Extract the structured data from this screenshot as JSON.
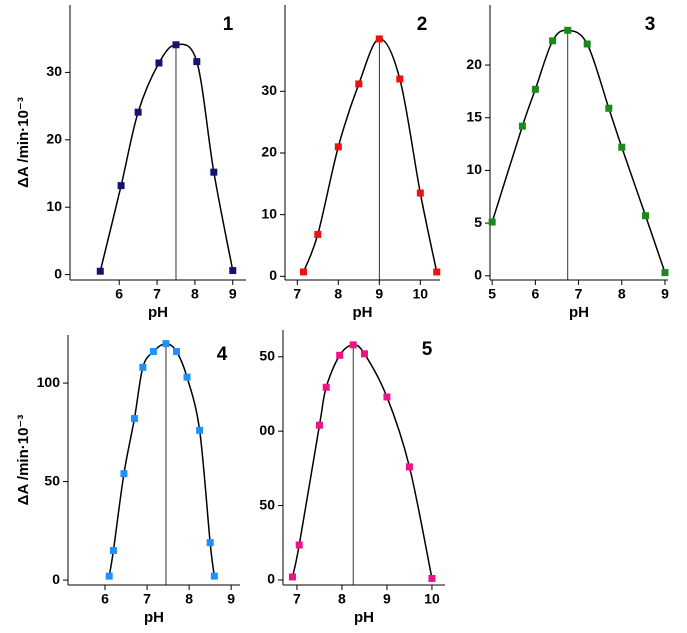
{
  "chart_data": [
    {
      "type": "line",
      "title": "1",
      "x_label": "pH",
      "y_label": "ΔA /min·10⁻³",
      "color": "#141470",
      "x": [
        5.5,
        6.05,
        6.5,
        7.05,
        7.5,
        8.05,
        8.5,
        9.0
      ],
      "values": [
        0.5,
        13.2,
        24.1,
        31.4,
        34.1,
        31.6,
        15.2,
        0.6
      ],
      "vline": 7.5,
      "xlim": [
        4.7,
        9.35
      ],
      "ylim": [
        -0.8,
        40
      ],
      "xticks": [
        6,
        7,
        8,
        9
      ],
      "yticks": [
        0,
        10,
        20,
        30
      ]
    },
    {
      "type": "line",
      "title": "2",
      "x_label": "pH",
      "color": "#ee1111",
      "x": [
        7.15,
        7.5,
        8.0,
        8.5,
        9.0,
        9.5,
        10.0,
        10.4
      ],
      "values": [
        0.7,
        6.8,
        21,
        31.2,
        38.5,
        32,
        13.5,
        0.7
      ],
      "vline": 9,
      "xlim": [
        6.7,
        10.48
      ],
      "ylim": [
        -0.6,
        44
      ],
      "xticks": [
        7,
        8,
        9,
        10
      ],
      "yticks": [
        0,
        10,
        20,
        30
      ]
    },
    {
      "type": "line",
      "title": "3",
      "x_label": "pH",
      "color": "#1a8a1a",
      "x": [
        5.0,
        5.7,
        6.0,
        6.4,
        6.75,
        7.2,
        7.7,
        8.0,
        8.55,
        9.0
      ],
      "values": [
        5.1,
        14.2,
        17.7,
        22.3,
        23.3,
        22,
        15.9,
        12.2,
        5.7,
        0.3
      ],
      "vline": 6.75,
      "xlim": [
        4.95,
        9.07
      ],
      "ylim": [
        -0.4,
        25.7
      ],
      "xticks": [
        5,
        6,
        7,
        8,
        9
      ],
      "yticks": [
        0,
        5,
        10,
        15,
        20
      ]
    },
    {
      "type": "line",
      "title": "4",
      "x_label": "pH",
      "y_label": "ΔA /min·10⁻³",
      "color": "#1e90ff",
      "x": [
        6.1,
        6.2,
        6.45,
        6.7,
        6.9,
        7.15,
        7.45,
        7.7,
        7.95,
        8.25,
        8.5,
        8.6
      ],
      "values": [
        2,
        15,
        54,
        82,
        108,
        116,
        120,
        116,
        103,
        76,
        19,
        2
      ],
      "vline": 7.45,
      "xlim": [
        5.12,
        9.21
      ],
      "ylim": [
        -2.5,
        124.4
      ],
      "xticks": [
        6,
        7,
        8,
        9
      ],
      "yticks": [
        0,
        50,
        100
      ]
    },
    {
      "type": "line",
      "title": "5",
      "x_label": "pH",
      "color": "#ee1188",
      "x": [
        6.9,
        7.05,
        7.5,
        7.65,
        7.95,
        8.25,
        8.5,
        9.0,
        9.5,
        10.0
      ],
      "values": [
        2,
        23.5,
        104,
        129.5,
        151,
        158,
        152,
        123,
        76,
        1
      ],
      "vline": 8.25,
      "xlim": [
        6.69,
        10.29
      ],
      "ylim": [
        -3.4,
        168
      ],
      "xticks": [
        7,
        8,
        9,
        10
      ],
      "yticks": [
        0,
        50,
        {
          "value": 100,
          "label": "00"
        },
        {
          "value": 150,
          "label": "50"
        }
      ]
    }
  ]
}
